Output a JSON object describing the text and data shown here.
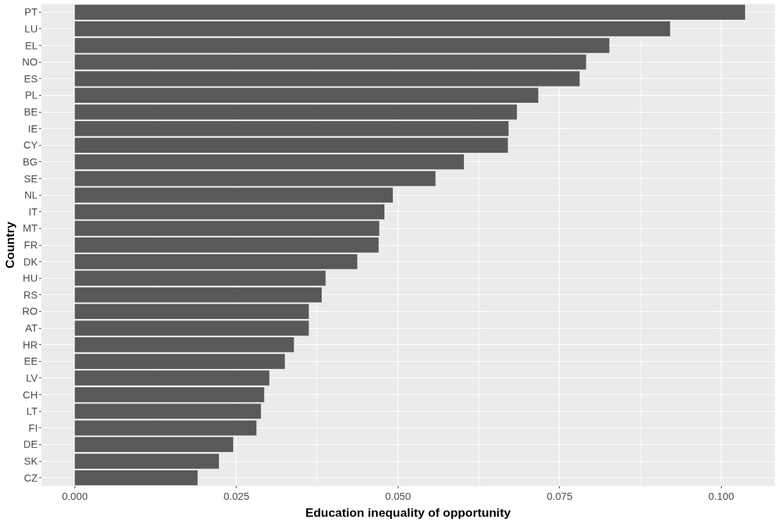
{
  "chart_data": {
    "type": "bar",
    "orientation": "horizontal",
    "xlabel": "Education inequality of opportunity",
    "ylabel": "Country",
    "categories": [
      "PT",
      "LU",
      "EL",
      "NO",
      "ES",
      "PL",
      "BE",
      "IE",
      "CY",
      "BG",
      "SE",
      "NL",
      "IT",
      "MT",
      "FR",
      "DK",
      "HU",
      "RS",
      "RO",
      "AT",
      "HR",
      "EE",
      "LV",
      "CH",
      "LT",
      "FI",
      "DE",
      "SK",
      "CZ"
    ],
    "values": [
      0.1037,
      0.0921,
      0.0827,
      0.0791,
      0.0781,
      0.0717,
      0.0684,
      0.0671,
      0.067,
      0.0602,
      0.0558,
      0.0492,
      0.0479,
      0.0471,
      0.047,
      0.0437,
      0.0388,
      0.0382,
      0.0362,
      0.0362,
      0.0339,
      0.0325,
      0.0301,
      0.0293,
      0.0288,
      0.0281,
      0.0245,
      0.0223,
      0.019
    ],
    "color": "#595959",
    "xlim": [
      -0.0052,
      0.1083
    ],
    "xticks": [
      {
        "value": 0,
        "label": "0.000"
      },
      {
        "value": 0.025,
        "label": "0.025"
      },
      {
        "value": 0.05,
        "label": "0.050"
      },
      {
        "value": 0.075,
        "label": "0.075"
      },
      {
        "value": 0.1,
        "label": "0.100"
      }
    ],
    "grid": true
  }
}
